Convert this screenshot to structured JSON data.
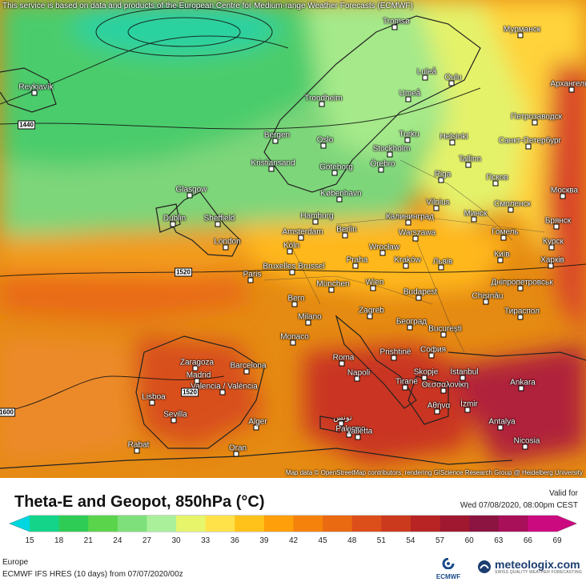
{
  "notice": "This service is based on data and products of the European Centre for Medium-range Weather Forecasts (ECMWF)",
  "attribution": "Map data © OpenStreetMap contributors, rendering GIScience Research Group @ Heidelberg University",
  "title": "Theta-E and Geopot, 850hPa (°C)",
  "valid_for": "Valid for",
  "valid_time": "Wed 07/08/2020, 08:00pm CEST",
  "region": "Europe",
  "model": "ECMWF IFS HRES (10 days)  from  07/07/2020/00z",
  "ecmwf_label": "ECMWF",
  "brand": {
    "name": "meteologix.com",
    "tagline": "SWISS QUALITY WEATHER FORECASTING"
  },
  "scale": {
    "ticks": [
      "15",
      "18",
      "21",
      "24",
      "27",
      "30",
      "33",
      "36",
      "39",
      "42",
      "45",
      "48",
      "51",
      "54",
      "57",
      "60",
      "63",
      "66",
      "69"
    ],
    "colors": [
      "#00d6e0",
      "#14d48a",
      "#2fcc55",
      "#5ad44a",
      "#7ee07a",
      "#aaf09a",
      "#e6f56a",
      "#ffe24a",
      "#ffc21a",
      "#ff9f0a",
      "#f5820a",
      "#ea6a12",
      "#dd4f1a",
      "#cc3a1e",
      "#b82424",
      "#a01830",
      "#8c1440",
      "#a8105a",
      "#cc0a80"
    ]
  },
  "isohypse_labels": [
    "1440",
    "1520",
    "1520",
    "1600"
  ],
  "cities": [
    "Tromsø",
    "Мурманск",
    "Luleå",
    "Oulu",
    "Umeå",
    "Trondheim",
    "Петрозаводск",
    "Архангельск",
    "Bergen",
    "Oslo",
    "Turku",
    "Helsinki",
    "Санкт-Петербург",
    "Stockholm",
    "Örebro",
    "Tallinn",
    "Kristiansand",
    "Göteborg",
    "Riga",
    "Псков",
    "Reykjavík",
    "Glasgow",
    "København",
    "Vilnius",
    "Москва",
    "Dublin",
    "Sheffield",
    "Hamburg",
    "Калининград",
    "Минск",
    "Смоленск",
    "Брянск",
    "London",
    "Amsterdam",
    "Berlin",
    "Warszawa",
    "Гомель",
    "Курск",
    "Köln",
    "Wrocław",
    "Київ",
    "Bruxelles Brussel",
    "Praha",
    "Kraków",
    "Львів",
    "Харків",
    "Paris",
    "München",
    "Wien",
    "Budapest",
    "Дніпропетровськ",
    "Chișinău",
    "Bern",
    "Zagreb",
    "Тираспол",
    "Milano",
    "Београд",
    "București",
    "Monaco",
    "Zaragoza",
    "Barcelona",
    "Roma",
    "Prishtinë",
    "София",
    "Madrid",
    "Valencia / València",
    "Napoli",
    "Skopje",
    "İstanbul",
    "Lisboa",
    "Sevilla",
    "Tiranë",
    "Θεσσαλονίκη",
    "Ankara",
    "Alger",
    "تونس",
    "Palermo",
    "Αθήνα",
    "İzmir",
    "Rabat",
    "Oran",
    "Valletta",
    "Antalya",
    "Nicosia"
  ]
}
